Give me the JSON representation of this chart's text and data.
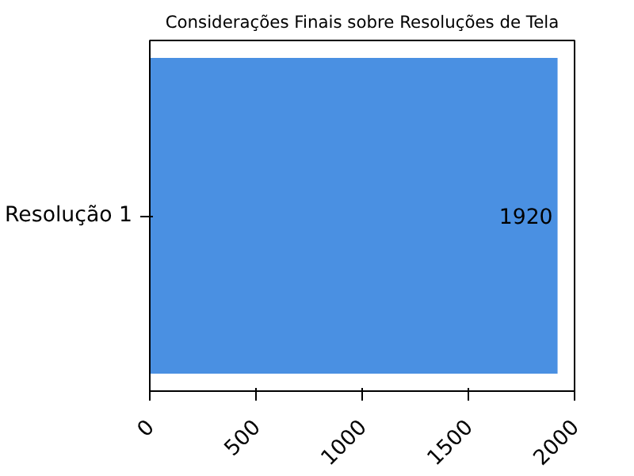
{
  "chart_data": {
    "type": "bar",
    "orientation": "horizontal",
    "title": "Considerações Finais sobre Resoluções de Tela",
    "categories": [
      "Resolução 1"
    ],
    "values": [
      1920
    ],
    "color": "#4a90e2",
    "data_labels": true,
    "xlim": [
      0,
      2000
    ],
    "xticks": [
      0,
      500,
      1000,
      1500,
      2000
    ],
    "grid": false
  }
}
